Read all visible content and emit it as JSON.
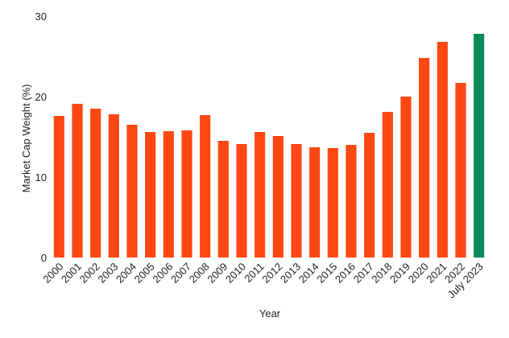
{
  "chart_data": {
    "type": "bar",
    "title": "",
    "xlabel": "Year",
    "ylabel": "Market Cap Weight (%)",
    "ylim": [
      0,
      30
    ],
    "yticks": [
      0,
      10,
      20,
      30
    ],
    "grid": false,
    "categories": [
      "2000",
      "2001",
      "2002",
      "2003",
      "2004",
      "2005",
      "2006",
      "2007",
      "2008",
      "2009",
      "2010",
      "2011",
      "2012",
      "2013",
      "2014",
      "2015",
      "2016",
      "2017",
      "2018",
      "2019",
      "2020",
      "2021",
      "2022",
      "July 2023"
    ],
    "values": [
      17.6,
      19.1,
      18.5,
      17.8,
      16.5,
      15.6,
      15.7,
      15.8,
      17.7,
      14.5,
      14.1,
      15.6,
      15.1,
      14.1,
      13.7,
      13.6,
      14.0,
      15.5,
      18.1,
      20.0,
      24.8,
      26.8,
      21.7,
      27.8
    ],
    "colors": {
      "default_bar": "#FF4713",
      "highlight_bar": "#0A8A5A",
      "text": "#222222"
    },
    "highlight_index": 23
  }
}
